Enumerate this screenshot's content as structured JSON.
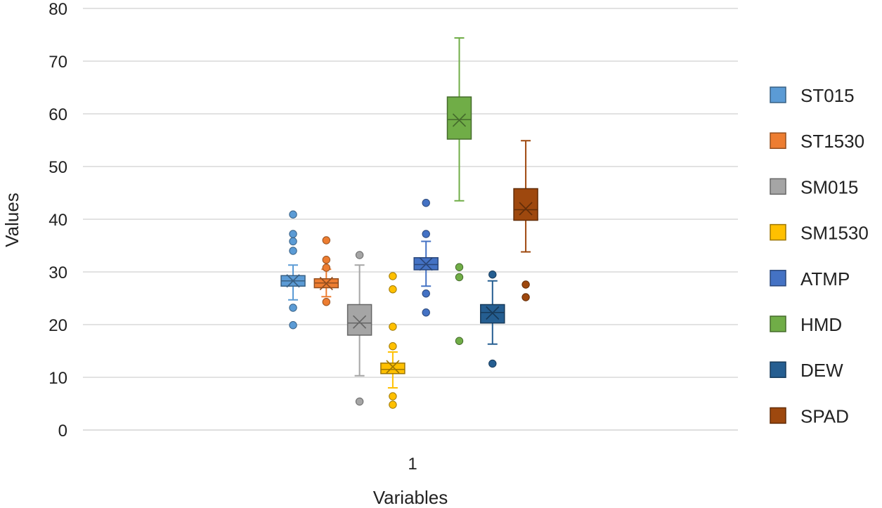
{
  "chart_data": {
    "type": "boxplot",
    "title": "",
    "xlabel": "Variables",
    "ylabel": "Values",
    "ylim": [
      0,
      80
    ],
    "yticks": [
      0,
      10,
      20,
      30,
      40,
      50,
      60,
      70,
      80
    ],
    "ytick_labels": [
      "0",
      "10",
      "20",
      "30",
      "40",
      "50",
      "60",
      "70",
      "80"
    ],
    "categories": [
      "1"
    ],
    "grid": true,
    "legend_position": "right",
    "series": [
      {
        "name": "ST015",
        "color": "#5B9BD5",
        "whisker_low": 24.7,
        "q1": 27.3,
        "median": 28.3,
        "q3": 29.3,
        "whisker_high": 31.3,
        "mean": 28.3,
        "outliers": [
          19.9,
          23.2,
          34.0,
          35.8,
          37.2,
          40.9
        ]
      },
      {
        "name": "ST1530",
        "color": "#ED7D31",
        "whisker_low": 25.3,
        "q1": 27.0,
        "median": 27.9,
        "q3": 28.7,
        "whisker_high": 30.5,
        "mean": 27.8,
        "outliers": [
          24.3,
          30.8,
          32.3,
          36.0
        ]
      },
      {
        "name": "SM015",
        "color": "#A5A5A5",
        "whisker_low": 10.3,
        "q1": 18.0,
        "median": 20.3,
        "q3": 23.8,
        "whisker_high": 31.3,
        "mean": 20.5,
        "outliers": [
          5.4,
          33.2
        ]
      },
      {
        "name": "SM1530",
        "color": "#FFC000",
        "whisker_low": 8.0,
        "q1": 10.7,
        "median": 11.5,
        "q3": 12.7,
        "whisker_high": 14.8,
        "mean": 12.0,
        "outliers": [
          4.8,
          6.4,
          15.9,
          19.6,
          26.7,
          29.2
        ]
      },
      {
        "name": "ATMP",
        "color": "#4472C4",
        "whisker_low": 27.3,
        "q1": 30.4,
        "median": 31.4,
        "q3": 32.7,
        "whisker_high": 35.8,
        "mean": 31.5,
        "outliers": [
          22.3,
          25.9,
          37.2,
          43.1
        ]
      },
      {
        "name": "HMD",
        "color": "#70AD47",
        "whisker_low": 43.5,
        "q1": 55.2,
        "median": 58.9,
        "q3": 63.2,
        "whisker_high": 74.4,
        "mean": 58.8,
        "outliers": [
          16.9,
          29.0,
          30.9
        ]
      },
      {
        "name": "DEW",
        "color": "#255E91",
        "whisker_low": 16.3,
        "q1": 20.3,
        "median": 22.3,
        "q3": 23.8,
        "whisker_high": 28.3,
        "mean": 22.2,
        "outliers": [
          12.6,
          29.5
        ]
      },
      {
        "name": "SPAD",
        "color": "#9E480E",
        "whisker_low": 33.8,
        "q1": 39.8,
        "median": 41.8,
        "q3": 45.8,
        "whisker_high": 54.9,
        "mean": 42.0,
        "outliers": [
          25.2,
          27.6
        ]
      }
    ]
  }
}
